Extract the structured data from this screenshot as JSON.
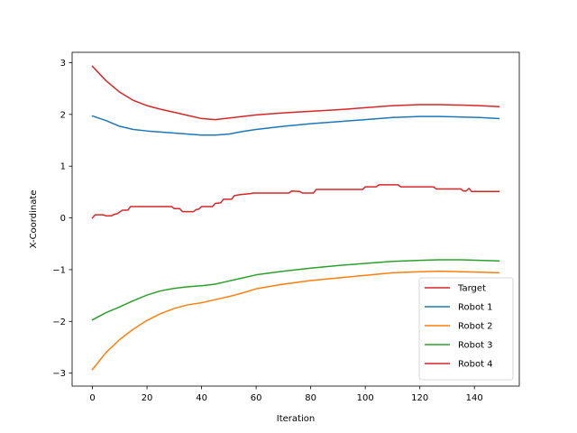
{
  "chart_data": {
    "type": "line",
    "title": "",
    "xlabel": "Iteration",
    "ylabel": "X-Coordinate",
    "xlim": [
      -7.45,
      156.45
    ],
    "ylim": [
      -3.25,
      3.2
    ],
    "xticks": [
      0,
      20,
      40,
      60,
      80,
      100,
      120,
      140
    ],
    "yticks": [
      -3,
      -2,
      -1,
      0,
      1,
      2,
      3
    ],
    "grid": false,
    "legend_position": "lower right",
    "series": [
      {
        "name": "Target",
        "color": "#d62728",
        "x": [
          0,
          1,
          4,
          5,
          7,
          8,
          9,
          11,
          13,
          14,
          29,
          30,
          32,
          33,
          37,
          38,
          39,
          40,
          44,
          45,
          47,
          48,
          51,
          52,
          53,
          54,
          58,
          59,
          72,
          73,
          76,
          77,
          81,
          82,
          99,
          100,
          104,
          105,
          112,
          113,
          125,
          126,
          130,
          131,
          135,
          136,
          137,
          138,
          139,
          149
        ],
        "y": [
          0.0,
          0.06,
          0.06,
          0.04,
          0.04,
          0.07,
          0.08,
          0.15,
          0.15,
          0.22,
          0.22,
          0.18,
          0.18,
          0.12,
          0.12,
          0.16,
          0.17,
          0.22,
          0.22,
          0.28,
          0.29,
          0.36,
          0.36,
          0.43,
          0.44,
          0.45,
          0.47,
          0.48,
          0.48,
          0.52,
          0.51,
          0.48,
          0.48,
          0.55,
          0.55,
          0.6,
          0.6,
          0.64,
          0.64,
          0.6,
          0.6,
          0.56,
          0.56,
          0.56,
          0.56,
          0.52,
          0.52,
          0.57,
          0.51,
          0.51
        ]
      },
      {
        "name": "Robot 1",
        "color": "#1f77b4",
        "x": [
          0,
          5,
          10,
          15,
          20,
          25,
          30,
          35,
          40,
          45,
          50,
          55,
          60,
          70,
          80,
          90,
          100,
          110,
          120,
          127,
          135,
          142,
          149
        ],
        "y": [
          1.97,
          1.88,
          1.77,
          1.71,
          1.68,
          1.66,
          1.64,
          1.62,
          1.6,
          1.6,
          1.62,
          1.67,
          1.71,
          1.77,
          1.82,
          1.86,
          1.9,
          1.94,
          1.96,
          1.96,
          1.95,
          1.94,
          1.92
        ]
      },
      {
        "name": "Robot 2",
        "color": "#ff7f0e",
        "x": [
          0,
          5,
          10,
          15,
          20,
          25,
          30,
          35,
          40,
          45,
          50,
          55,
          60,
          70,
          80,
          90,
          100,
          110,
          120,
          127,
          135,
          142,
          149
        ],
        "y": [
          -2.93,
          -2.6,
          -2.35,
          -2.15,
          -1.98,
          -1.85,
          -1.75,
          -1.68,
          -1.64,
          -1.58,
          -1.52,
          -1.45,
          -1.37,
          -1.28,
          -1.21,
          -1.16,
          -1.11,
          -1.06,
          -1.04,
          -1.03,
          -1.04,
          -1.05,
          -1.06
        ]
      },
      {
        "name": "Robot 3",
        "color": "#2ca02c",
        "x": [
          0,
          5,
          10,
          15,
          20,
          25,
          30,
          35,
          40,
          45,
          50,
          55,
          60,
          70,
          80,
          90,
          100,
          110,
          120,
          127,
          135,
          142,
          149
        ],
        "y": [
          -1.97,
          -1.83,
          -1.72,
          -1.6,
          -1.49,
          -1.41,
          -1.36,
          -1.33,
          -1.31,
          -1.28,
          -1.22,
          -1.16,
          -1.1,
          -1.03,
          -0.97,
          -0.92,
          -0.88,
          -0.84,
          -0.82,
          -0.81,
          -0.81,
          -0.82,
          -0.83
        ]
      },
      {
        "name": "Robot 4",
        "color": "#d62728",
        "x": [
          0,
          5,
          10,
          15,
          20,
          25,
          30,
          35,
          40,
          45,
          50,
          55,
          60,
          70,
          80,
          90,
          100,
          110,
          120,
          127,
          135,
          142,
          149
        ],
        "y": [
          2.93,
          2.65,
          2.43,
          2.27,
          2.17,
          2.1,
          2.04,
          1.98,
          1.92,
          1.9,
          1.93,
          1.96,
          1.99,
          2.03,
          2.06,
          2.09,
          2.13,
          2.17,
          2.19,
          2.19,
          2.18,
          2.17,
          2.15
        ]
      }
    ]
  }
}
